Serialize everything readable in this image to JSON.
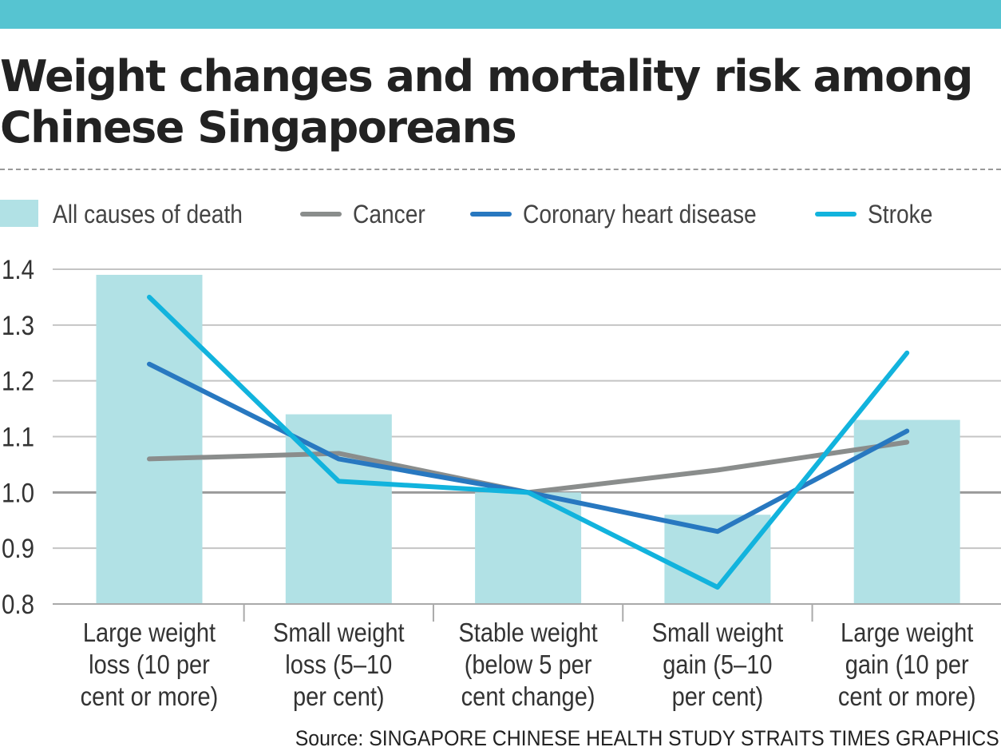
{
  "header": {
    "title": "Weight changes and mortality risk among Chinese Singaporeans"
  },
  "footer": {
    "source": "Source: SINGAPORE CHINESE HEALTH STUDY   STRAITS TIMES GRAPHICS"
  },
  "colors": {
    "top_bar": "#56c4d1",
    "bars": "#b1e1e5",
    "cancer": "#8a8d8c",
    "coronary_heart_disease": "#2878c0",
    "stroke": "#12b3dd",
    "baseline": "#9a9a9a",
    "grid": "#c4c4c4"
  },
  "chart_data": {
    "type": "bar",
    "title": "Weight changes and mortality risk among Chinese Singaporeans",
    "xlabel": "",
    "ylabel": "",
    "ylim": [
      0.8,
      1.4
    ],
    "yticks": [
      "1.4",
      "1.3",
      "1.2",
      "1.1",
      "1.0",
      "0.9",
      "0.8"
    ],
    "grid": true,
    "legend": "top",
    "categories": [
      [
        "Large weight",
        "loss (10 per",
        "cent or more)"
      ],
      [
        "Small weight",
        "loss (5–10",
        "per cent)"
      ],
      [
        "Stable weight",
        "(below 5 per",
        "cent change)"
      ],
      [
        "Small weight",
        "gain (5–10",
        "per cent)"
      ],
      [
        "Large weight",
        "gain (10 per",
        "cent or more)"
      ]
    ],
    "series": [
      {
        "name": "All causes of death",
        "kind": "bar",
        "values": [
          1.39,
          1.14,
          1.0,
          0.96,
          1.13
        ]
      },
      {
        "name": "Cancer",
        "kind": "line",
        "values": [
          1.06,
          1.07,
          1.0,
          1.04,
          1.09
        ]
      },
      {
        "name": "Coronary heart disease",
        "kind": "line",
        "values": [
          1.23,
          1.06,
          1.0,
          0.93,
          1.11
        ]
      },
      {
        "name": "Stroke",
        "kind": "line",
        "values": [
          1.35,
          1.02,
          1.0,
          0.83,
          1.25
        ]
      }
    ]
  }
}
